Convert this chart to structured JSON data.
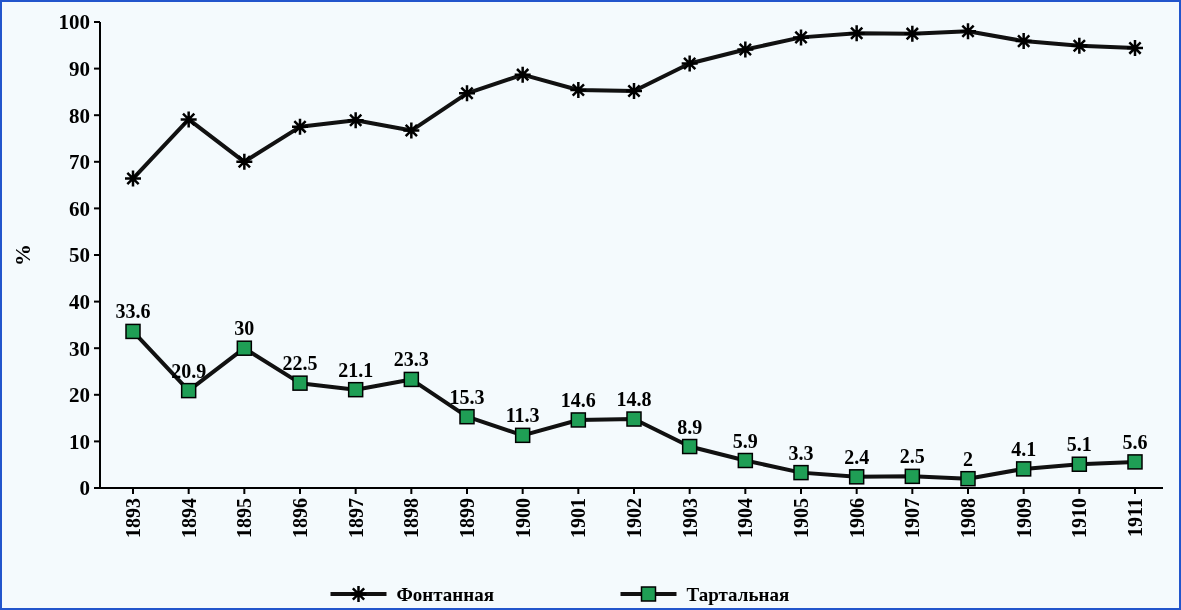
{
  "chart_data": {
    "type": "line",
    "ylabel": "%",
    "categories": [
      "1893",
      "1894",
      "1895",
      "1896",
      "1897",
      "1898",
      "1899",
      "1900",
      "1901",
      "1902",
      "1903",
      "1904",
      "1905",
      "1906",
      "1907",
      "1908",
      "1909",
      "1910",
      "1911"
    ],
    "series": [
      {
        "name": "Фонтанная",
        "color": "#000000",
        "marker": "cross",
        "values": [
          66.4,
          79.1,
          70,
          77.5,
          78.9,
          76.7,
          84.7,
          88.7,
          85.4,
          85.2,
          91.1,
          94.1,
          96.7,
          97.6,
          97.5,
          98,
          95.9,
          94.9,
          94.4
        ]
      },
      {
        "name": "Тартальная",
        "color": "#1f9e55",
        "marker": "square",
        "values": [
          33.6,
          20.9,
          30,
          22.5,
          21.1,
          23.3,
          15.3,
          11.3,
          14.6,
          14.8,
          8.9,
          5.9,
          3.3,
          2.4,
          2.5,
          2,
          4.1,
          5.1,
          5.6
        ],
        "value_labels": [
          "33.6",
          "20.9",
          "30",
          "22.5",
          "21.1",
          "23.3",
          "15.3",
          "11.3",
          "14.6",
          "14.8",
          "8.9",
          "5.9",
          "3.3",
          "2.4",
          "2.5",
          "2",
          "4.1",
          "5.1",
          "5.6"
        ]
      }
    ],
    "ylim": [
      0,
      100
    ],
    "yticks": [
      0,
      10,
      20,
      30,
      40,
      50,
      60,
      70,
      80,
      90,
      100
    ],
    "legend": "bottom"
  }
}
